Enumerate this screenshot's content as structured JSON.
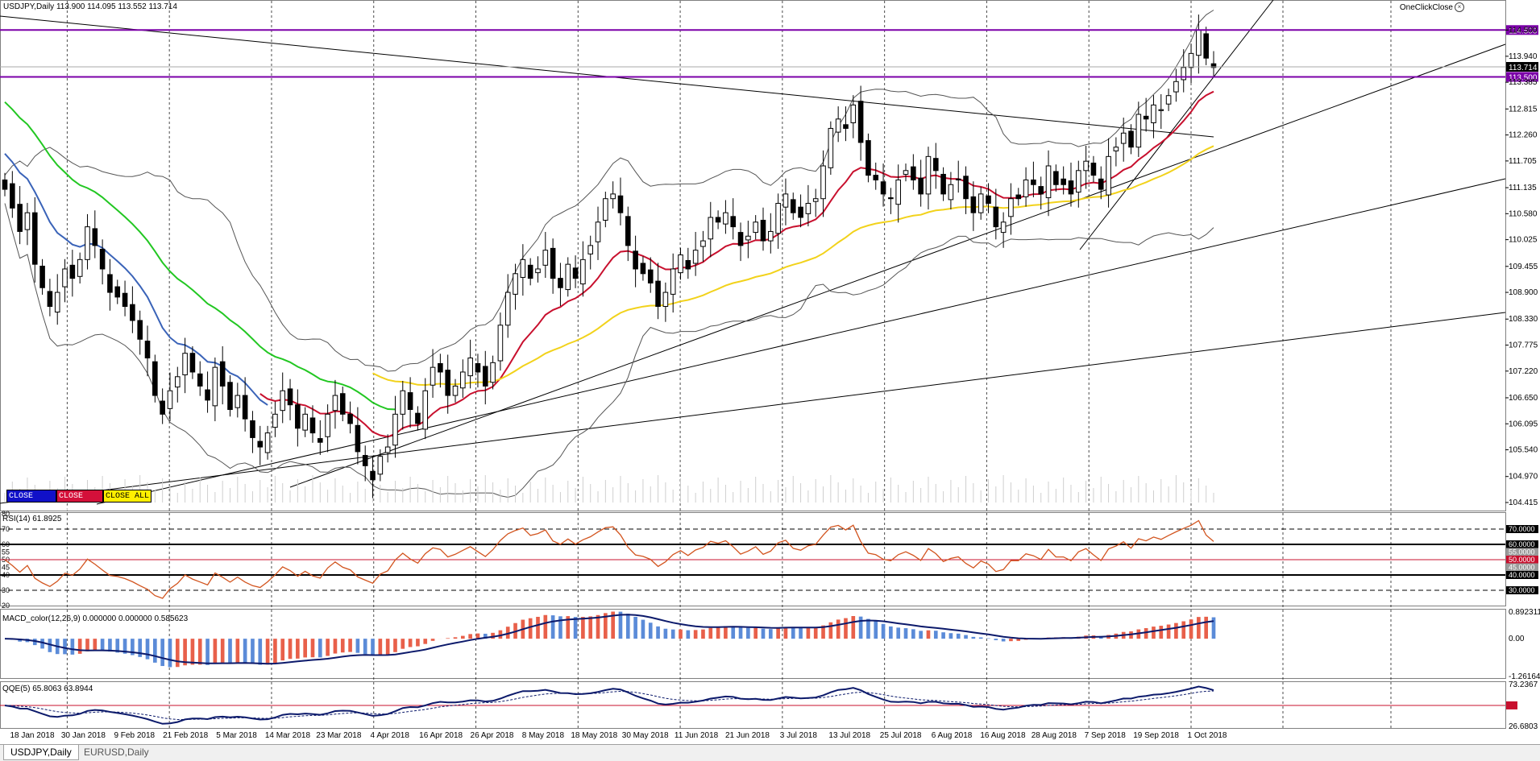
{
  "header": {
    "symbol_line": "USDJPY,Daily  113.900 114.095 113.552 113.714",
    "plugin": "OneClickClose"
  },
  "buttons": {
    "close_sell": "CLOSE SELL",
    "close_buy": "CLOSE BUY",
    "close_all": "CLOSE ALL"
  },
  "tabs": [
    "USDJPY,Daily",
    "EURUSD,Daily"
  ],
  "colors": {
    "bull": "#ffffff",
    "bear": "#000000",
    "ma_blue": "#3a63b8",
    "ma_red": "#c8102e",
    "ma_yellow": "#f2d21b",
    "ma_green": "#22c722",
    "level": "#7b00a8",
    "rsi": "#d2541e",
    "macd_pos": "#e8604a",
    "macd_neg": "#5b8bd8",
    "macd_signal": "#0c1a6b",
    "qqe": "#0c1a6b"
  },
  "chart_data": [
    {
      "type": "candlestick",
      "title": "USDJPY,Daily",
      "ohlc_last": {
        "open": 113.9,
        "high": 114.095,
        "low": 113.552,
        "close": 113.714
      },
      "ylim": [
        104.415,
        114.9
      ],
      "y_ticks": [
        "114.500",
        "113.940",
        "113.385",
        "112.815",
        "112.260",
        "111.705",
        "111.135",
        "110.580",
        "110.025",
        "109.455",
        "108.900",
        "108.330",
        "107.775",
        "107.220",
        "106.650",
        "106.095",
        "105.540",
        "104.970",
        "104.415"
      ],
      "x_ticks": [
        "18 Jan 2018",
        "30 Jan 2018",
        "9 Feb 2018",
        "21 Feb 2018",
        "5 Mar 2018",
        "14 Mar 2018",
        "23 Mar 2018",
        "4 Apr 2018",
        "16 Apr 2018",
        "26 Apr 2018",
        "8 May 2018",
        "18 May 2018",
        "30 May 2018",
        "11 Jun 2018",
        "21 Jun 2018",
        "3 Jul 2018",
        "13 Jul 2018",
        "25 Jul 2018",
        "6 Aug 2018",
        "16 Aug 2018",
        "28 Aug 2018",
        "7 Sep 2018",
        "19 Sep 2018",
        "1 Oct 2018"
      ],
      "levels": [
        {
          "value": 114.5,
          "label": "114.500"
        },
        {
          "value": 113.5,
          "label": "113.500"
        }
      ],
      "last_price_label": "113.714",
      "closes": [
        111.1,
        110.7,
        110.2,
        110.6,
        109.5,
        109.0,
        108.6,
        108.9,
        109.4,
        109.2,
        109.6,
        110.3,
        109.9,
        109.4,
        108.9,
        108.8,
        108.6,
        108.3,
        107.9,
        107.5,
        106.7,
        106.3,
        106.8,
        107.1,
        107.6,
        107.2,
        106.9,
        106.6,
        107.3,
        106.9,
        106.4,
        106.7,
        106.2,
        105.8,
        105.6,
        105.9,
        106.3,
        106.8,
        106.5,
        106.0,
        106.3,
        105.9,
        105.7,
        106.3,
        106.7,
        106.3,
        106.1,
        105.5,
        105.2,
        104.9,
        105.4,
        105.6,
        106.3,
        106.8,
        106.4,
        106.1,
        106.8,
        107.3,
        107.2,
        106.7,
        106.9,
        107.2,
        107.5,
        107.2,
        106.9,
        107.4,
        108.2,
        108.9,
        109.3,
        109.6,
        109.2,
        109.4,
        109.8,
        109.2,
        109.0,
        109.5,
        109.2,
        109.6,
        109.9,
        110.4,
        110.9,
        111.0,
        110.6,
        109.9,
        109.4,
        109.3,
        109.1,
        108.6,
        108.9,
        109.4,
        109.7,
        109.4,
        109.8,
        110.0,
        110.5,
        110.4,
        110.6,
        110.3,
        109.9,
        110.1,
        110.4,
        110.0,
        110.2,
        110.8,
        111.0,
        110.6,
        110.5,
        110.8,
        110.9,
        111.6,
        112.4,
        112.6,
        112.4,
        112.9,
        112.1,
        111.4,
        111.3,
        111.0,
        110.9,
        111.3,
        111.5,
        111.3,
        111.0,
        111.8,
        111.5,
        111.0,
        111.2,
        111.3,
        110.9,
        110.6,
        111.0,
        110.8,
        110.3,
        110.4,
        110.9,
        110.9,
        111.3,
        111.2,
        111.0,
        111.6,
        111.2,
        111.2,
        111.0,
        111.5,
        111.7,
        111.4,
        111.1,
        111.8,
        112.0,
        112.3,
        112.0,
        112.7,
        112.6,
        112.9,
        112.8,
        113.1,
        113.4,
        113.7,
        114.0,
        114.5,
        113.9,
        113.7
      ],
      "ma_blue_start": 112.0,
      "ma_green_start": 113.1
    },
    {
      "type": "line",
      "title": "RSI(14) 61.8925",
      "ylim": [
        20,
        80
      ],
      "y_ticks": [
        "80",
        "70",
        "60",
        "55",
        "50",
        "45",
        "40",
        "30",
        "20"
      ],
      "right_labels": [
        "70.0000",
        "60.0000",
        "55.0000",
        "50.0000",
        "45.0000",
        "40.0000",
        "30.0000"
      ],
      "levels": [
        70,
        60,
        50,
        40,
        30
      ],
      "last": 61.8925
    },
    {
      "type": "bar",
      "title": "MACD_color(12,26,9) 0.000000 0.000000 0.585623",
      "ylim": [
        -1.26164,
        0.892311
      ],
      "y_ticks": [
        "0.892311",
        "0.00",
        "-1.26164"
      ]
    },
    {
      "type": "line",
      "title": "QQE(5) 65.8063 63.8944",
      "ylim": [
        26.6803,
        73.2367
      ],
      "y_ticks": [
        "73.2367",
        "50",
        "26.6803"
      ],
      "level": 50
    }
  ]
}
